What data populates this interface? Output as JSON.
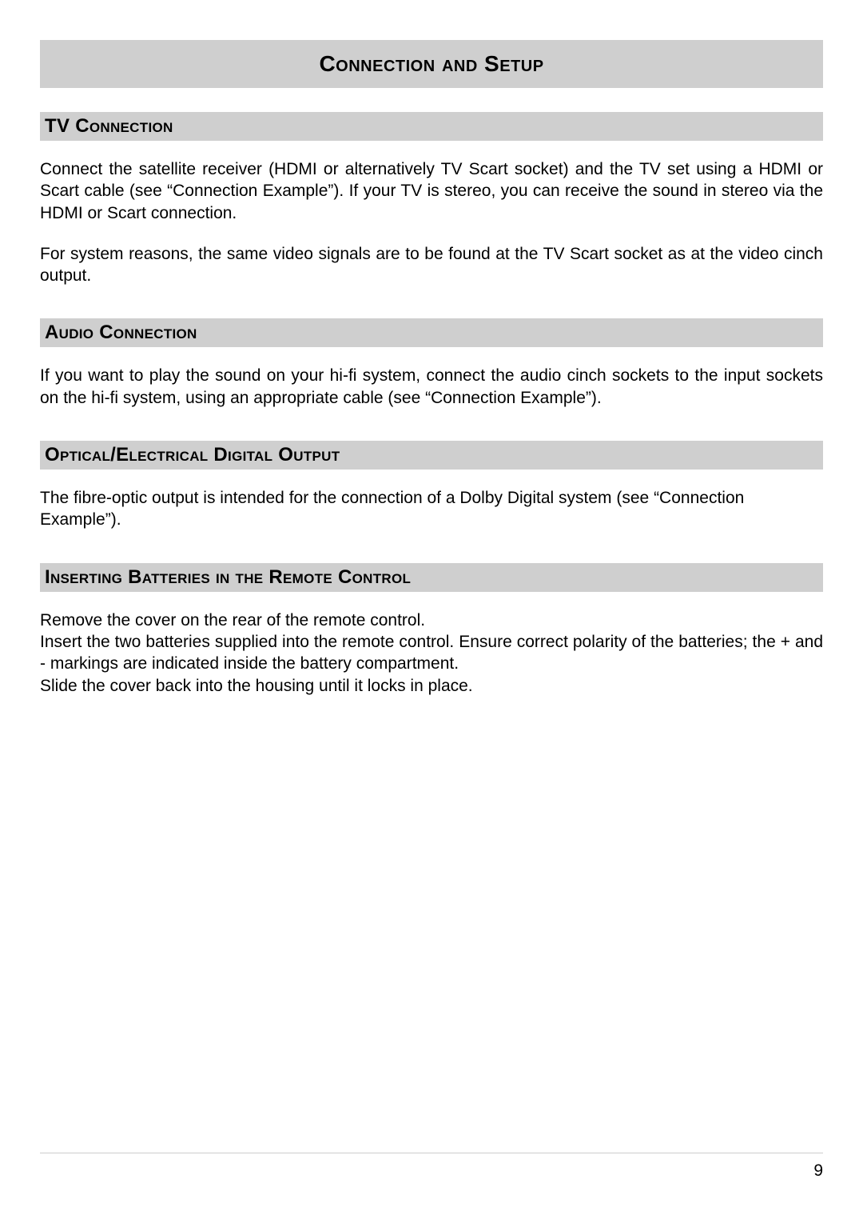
{
  "colors": {
    "header_bg": "#cfcfcf",
    "rule": "#cccccc",
    "text": "#000000",
    "page_bg": "#ffffff"
  },
  "typography": {
    "title_fontsize_pt": 21,
    "section_fontsize_pt": 18,
    "body_fontsize_pt": 16,
    "font_family": "Arial"
  },
  "page_number": "9",
  "main_title": "Connection and Setup",
  "sections": [
    {
      "title": "TV Connection",
      "paragraphs": [
        "Connect the satellite receiver (HDMI or alternatively TV Scart socket) and the TV set using a HDMI or Scart cable (see “Connection Example”). If your TV is stereo, you can receive the sound in stereo via the HDMI or Scart connection.",
        "For system reasons, the same video signals are to be found at the TV Scart socket as at the video cinch output."
      ]
    },
    {
      "title": "Audio Connection",
      "paragraphs": [
        "If you want to play the sound on your hi-fi system, connect the audio cinch sockets to the input sockets on the hi-fi system, using an appropriate cable (see “Connection Example”)."
      ]
    },
    {
      "title": "Optical/Electrical Digital Output",
      "paragraphs": [
        "The fibre-optic output is intended for the connection of a Dolby Digital system (see “Connection Example”)."
      ]
    },
    {
      "title": "Inserting Batteries in the Remote Control",
      "paragraphs": [
        "Remove the cover on the rear of the remote control.\nInsert the two batteries supplied into the remote control. Ensure correct polarity of the batteries; the + and - markings are indicated inside the battery compartment.\nSlide the cover back into the housing until it locks in place."
      ]
    }
  ]
}
